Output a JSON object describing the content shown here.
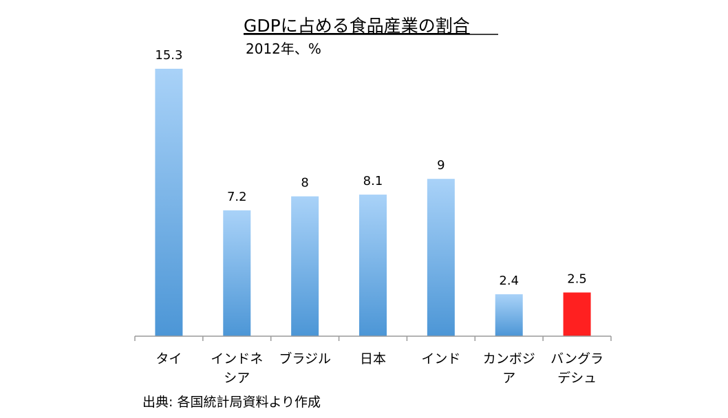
{
  "chart_data": {
    "type": "bar",
    "title": "GDPに占める食品産業の割合",
    "subtitle": "2012年、%",
    "categories": [
      [
        "タイ"
      ],
      [
        "インドネ",
        "シア"
      ],
      [
        "ブラジル"
      ],
      [
        "日本"
      ],
      [
        "インド"
      ],
      [
        "カンボジ",
        "ア"
      ],
      [
        "バングラ",
        "デシュ"
      ]
    ],
    "values": [
      15.3,
      7.2,
      8,
      8.1,
      9,
      2.4,
      2.5
    ],
    "value_labels": [
      "15.3",
      "7.2",
      "8",
      "8.1",
      "9",
      "2.4",
      "2.5"
    ],
    "highlight_index": 6,
    "ylim": [
      0,
      15.3
    ],
    "grid": false,
    "legend": "none",
    "source": "出典: 各国統計局資料より作成"
  },
  "colors": {
    "bar_top": "#a9d2f8",
    "bar_bottom": "#4c96d6",
    "highlight": "#ff2020",
    "axis": "#9a9a9a"
  }
}
